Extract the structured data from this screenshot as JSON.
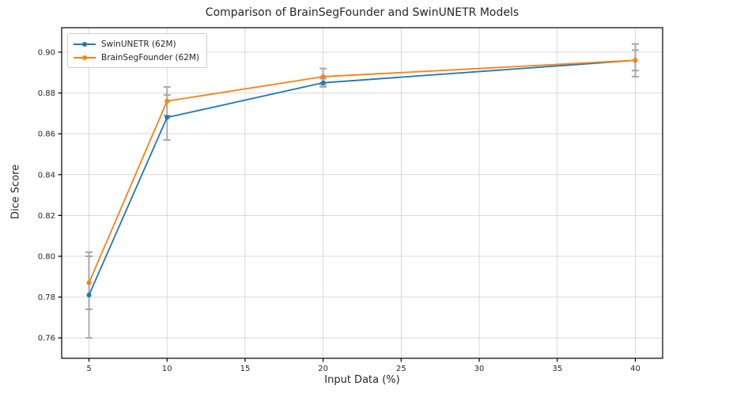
{
  "chart_data": {
    "type": "line",
    "title": "Comparison of BrainSegFounder and SwinUNETR Models",
    "xlabel": "Input Data (%)",
    "ylabel": "Dice Score",
    "x": [
      5,
      10,
      20,
      40
    ],
    "series": [
      {
        "name": "SwinUNETR (62M)",
        "color": "#1f77b4",
        "values": [
          0.781,
          0.868,
          0.885,
          0.896
        ],
        "yerr": [
          0.021,
          0.011,
          0.002,
          0.008
        ]
      },
      {
        "name": "BrainSegFounder (62M)",
        "color": "#ff7f0e",
        "values": [
          0.787,
          0.876,
          0.888,
          0.896
        ],
        "yerr": [
          0.013,
          0.007,
          0.004,
          0.005
        ]
      }
    ],
    "xticks": [
      5,
      10,
      15,
      20,
      25,
      30,
      35,
      40
    ],
    "yticks": [
      0.76,
      0.78,
      0.8,
      0.82,
      0.84,
      0.86,
      0.88,
      0.9
    ],
    "xlim": [
      3.25,
      41.75
    ],
    "ylim": [
      0.75,
      0.912
    ],
    "grid": true,
    "legend_position": "upper left",
    "grid_color": "#d9d9d9",
    "error_bar_color": "#a6a6a6",
    "spine_color": "#000000",
    "tick_label_color": "#262626"
  }
}
